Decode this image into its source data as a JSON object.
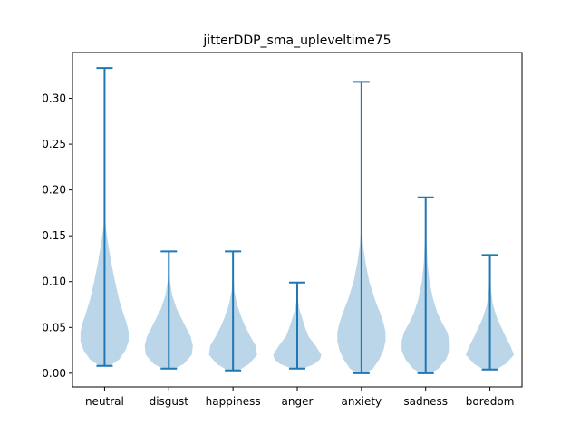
{
  "chart_data": {
    "type": "violin",
    "title": "jitterDDP_sma_upleveltime75",
    "xlabel": "",
    "ylabel": "",
    "ylim": [
      -0.015,
      0.35
    ],
    "yticks": [
      0.0,
      0.05,
      0.1,
      0.15,
      0.2,
      0.25,
      0.3
    ],
    "ytick_labels": [
      "0.00",
      "0.05",
      "0.10",
      "0.15",
      "0.20",
      "0.25",
      "0.30"
    ],
    "grid": false,
    "colors": {
      "body": "#1f77b4",
      "body_alpha": 0.3,
      "lines": "#1f77b4"
    },
    "categories": [
      "neutral",
      "disgust",
      "happiness",
      "anger",
      "anxiety",
      "sadness",
      "boredom"
    ],
    "violins": [
      {
        "category": "neutral",
        "min": 0.008,
        "max": 0.333,
        "density": [
          [
            0.008,
            0.01
          ],
          [
            0.015,
            0.028
          ],
          [
            0.025,
            0.04
          ],
          [
            0.035,
            0.046
          ],
          [
            0.045,
            0.046
          ],
          [
            0.055,
            0.042
          ],
          [
            0.065,
            0.036
          ],
          [
            0.08,
            0.028
          ],
          [
            0.1,
            0.02
          ],
          [
            0.12,
            0.013
          ],
          [
            0.14,
            0.007
          ],
          [
            0.16,
            0.002
          ],
          [
            0.18,
            0.0005
          ],
          [
            0.333,
            0.0
          ]
        ]
      },
      {
        "category": "disgust",
        "min": 0.005,
        "max": 0.133,
        "density": [
          [
            0.005,
            0.01
          ],
          [
            0.01,
            0.026
          ],
          [
            0.02,
            0.04
          ],
          [
            0.03,
            0.042
          ],
          [
            0.04,
            0.038
          ],
          [
            0.05,
            0.03
          ],
          [
            0.06,
            0.022
          ],
          [
            0.07,
            0.014
          ],
          [
            0.085,
            0.006
          ],
          [
            0.1,
            0.002
          ],
          [
            0.11,
            0.0005
          ],
          [
            0.133,
            0.0
          ]
        ]
      },
      {
        "category": "happiness",
        "min": 0.003,
        "max": 0.133,
        "density": [
          [
            0.003,
            0.008
          ],
          [
            0.01,
            0.024
          ],
          [
            0.02,
            0.036
          ],
          [
            0.03,
            0.034
          ],
          [
            0.04,
            0.026
          ],
          [
            0.05,
            0.019
          ],
          [
            0.06,
            0.013
          ],
          [
            0.075,
            0.006
          ],
          [
            0.09,
            0.002
          ],
          [
            0.11,
            0.0005
          ],
          [
            0.133,
            0.0
          ]
        ]
      },
      {
        "category": "anger",
        "min": 0.005,
        "max": 0.099,
        "density": [
          [
            0.005,
            0.008
          ],
          [
            0.01,
            0.024
          ],
          [
            0.015,
            0.032
          ],
          [
            0.02,
            0.034
          ],
          [
            0.03,
            0.026
          ],
          [
            0.04,
            0.016
          ],
          [
            0.05,
            0.011
          ],
          [
            0.06,
            0.007
          ],
          [
            0.07,
            0.003
          ],
          [
            0.08,
            0.001
          ],
          [
            0.099,
            0.0
          ]
        ]
      },
      {
        "category": "anxiety",
        "min": 0.0,
        "max": 0.318,
        "density": [
          [
            0.0,
            0.008
          ],
          [
            0.005,
            0.022
          ],
          [
            0.015,
            0.034
          ],
          [
            0.025,
            0.042
          ],
          [
            0.035,
            0.046
          ],
          [
            0.045,
            0.046
          ],
          [
            0.055,
            0.042
          ],
          [
            0.065,
            0.036
          ],
          [
            0.08,
            0.026
          ],
          [
            0.1,
            0.015
          ],
          [
            0.12,
            0.008
          ],
          [
            0.14,
            0.003
          ],
          [
            0.16,
            0.001
          ],
          [
            0.318,
            0.0
          ]
        ]
      },
      {
        "category": "sadness",
        "min": 0.0,
        "max": 0.192,
        "density": [
          [
            0.0,
            0.008
          ],
          [
            0.005,
            0.02
          ],
          [
            0.015,
            0.032
          ],
          [
            0.025,
            0.038
          ],
          [
            0.035,
            0.038
          ],
          [
            0.045,
            0.034
          ],
          [
            0.055,
            0.026
          ],
          [
            0.065,
            0.019
          ],
          [
            0.08,
            0.012
          ],
          [
            0.1,
            0.006
          ],
          [
            0.12,
            0.003
          ],
          [
            0.15,
            0.001
          ],
          [
            0.192,
            0.0
          ]
        ]
      },
      {
        "category": "boredom",
        "min": 0.004,
        "max": 0.129,
        "density": [
          [
            0.004,
            0.01
          ],
          [
            0.01,
            0.026
          ],
          [
            0.02,
            0.04
          ],
          [
            0.03,
            0.034
          ],
          [
            0.04,
            0.026
          ],
          [
            0.05,
            0.019
          ],
          [
            0.06,
            0.012
          ],
          [
            0.075,
            0.005
          ],
          [
            0.09,
            0.002
          ],
          [
            0.11,
            0.0005
          ],
          [
            0.129,
            0.0
          ]
        ]
      }
    ]
  }
}
